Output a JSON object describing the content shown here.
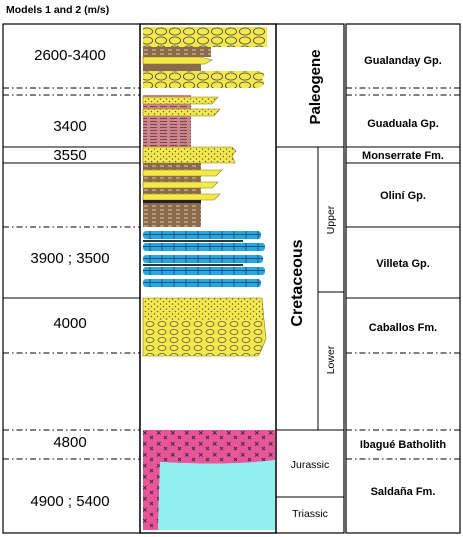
{
  "title": "Models 1 and 2 (m/s)",
  "velocities": [
    "2600-3400",
    "3400",
    "3550",
    "3900 ; 3500",
    "4000",
    "4800",
    "4900 ; 5400"
  ],
  "periods": {
    "paleogene": "Paleogene",
    "cretaceous": "Cretaceous",
    "jurassic": "Jurassic",
    "triassic": "Triassic"
  },
  "epochs": {
    "upper": "Upper",
    "lower": "Lower"
  },
  "formations": [
    "Gualanday Gp.",
    "Guaduala Gp.",
    "Monserrate Fm.",
    "Oliní Gp.",
    "Villeta Gp.",
    "Caballos Fm.",
    "Ibagué Batholith",
    "Saldaña Fm."
  ],
  "colors": {
    "sandstone": "#f5e94a",
    "red_mudstone": "#c9868c",
    "brown_shale": "#8b6b50",
    "limestone": "#29a8e0",
    "basement": "#e8559a",
    "volcanic": "#8ff0ee"
  }
}
